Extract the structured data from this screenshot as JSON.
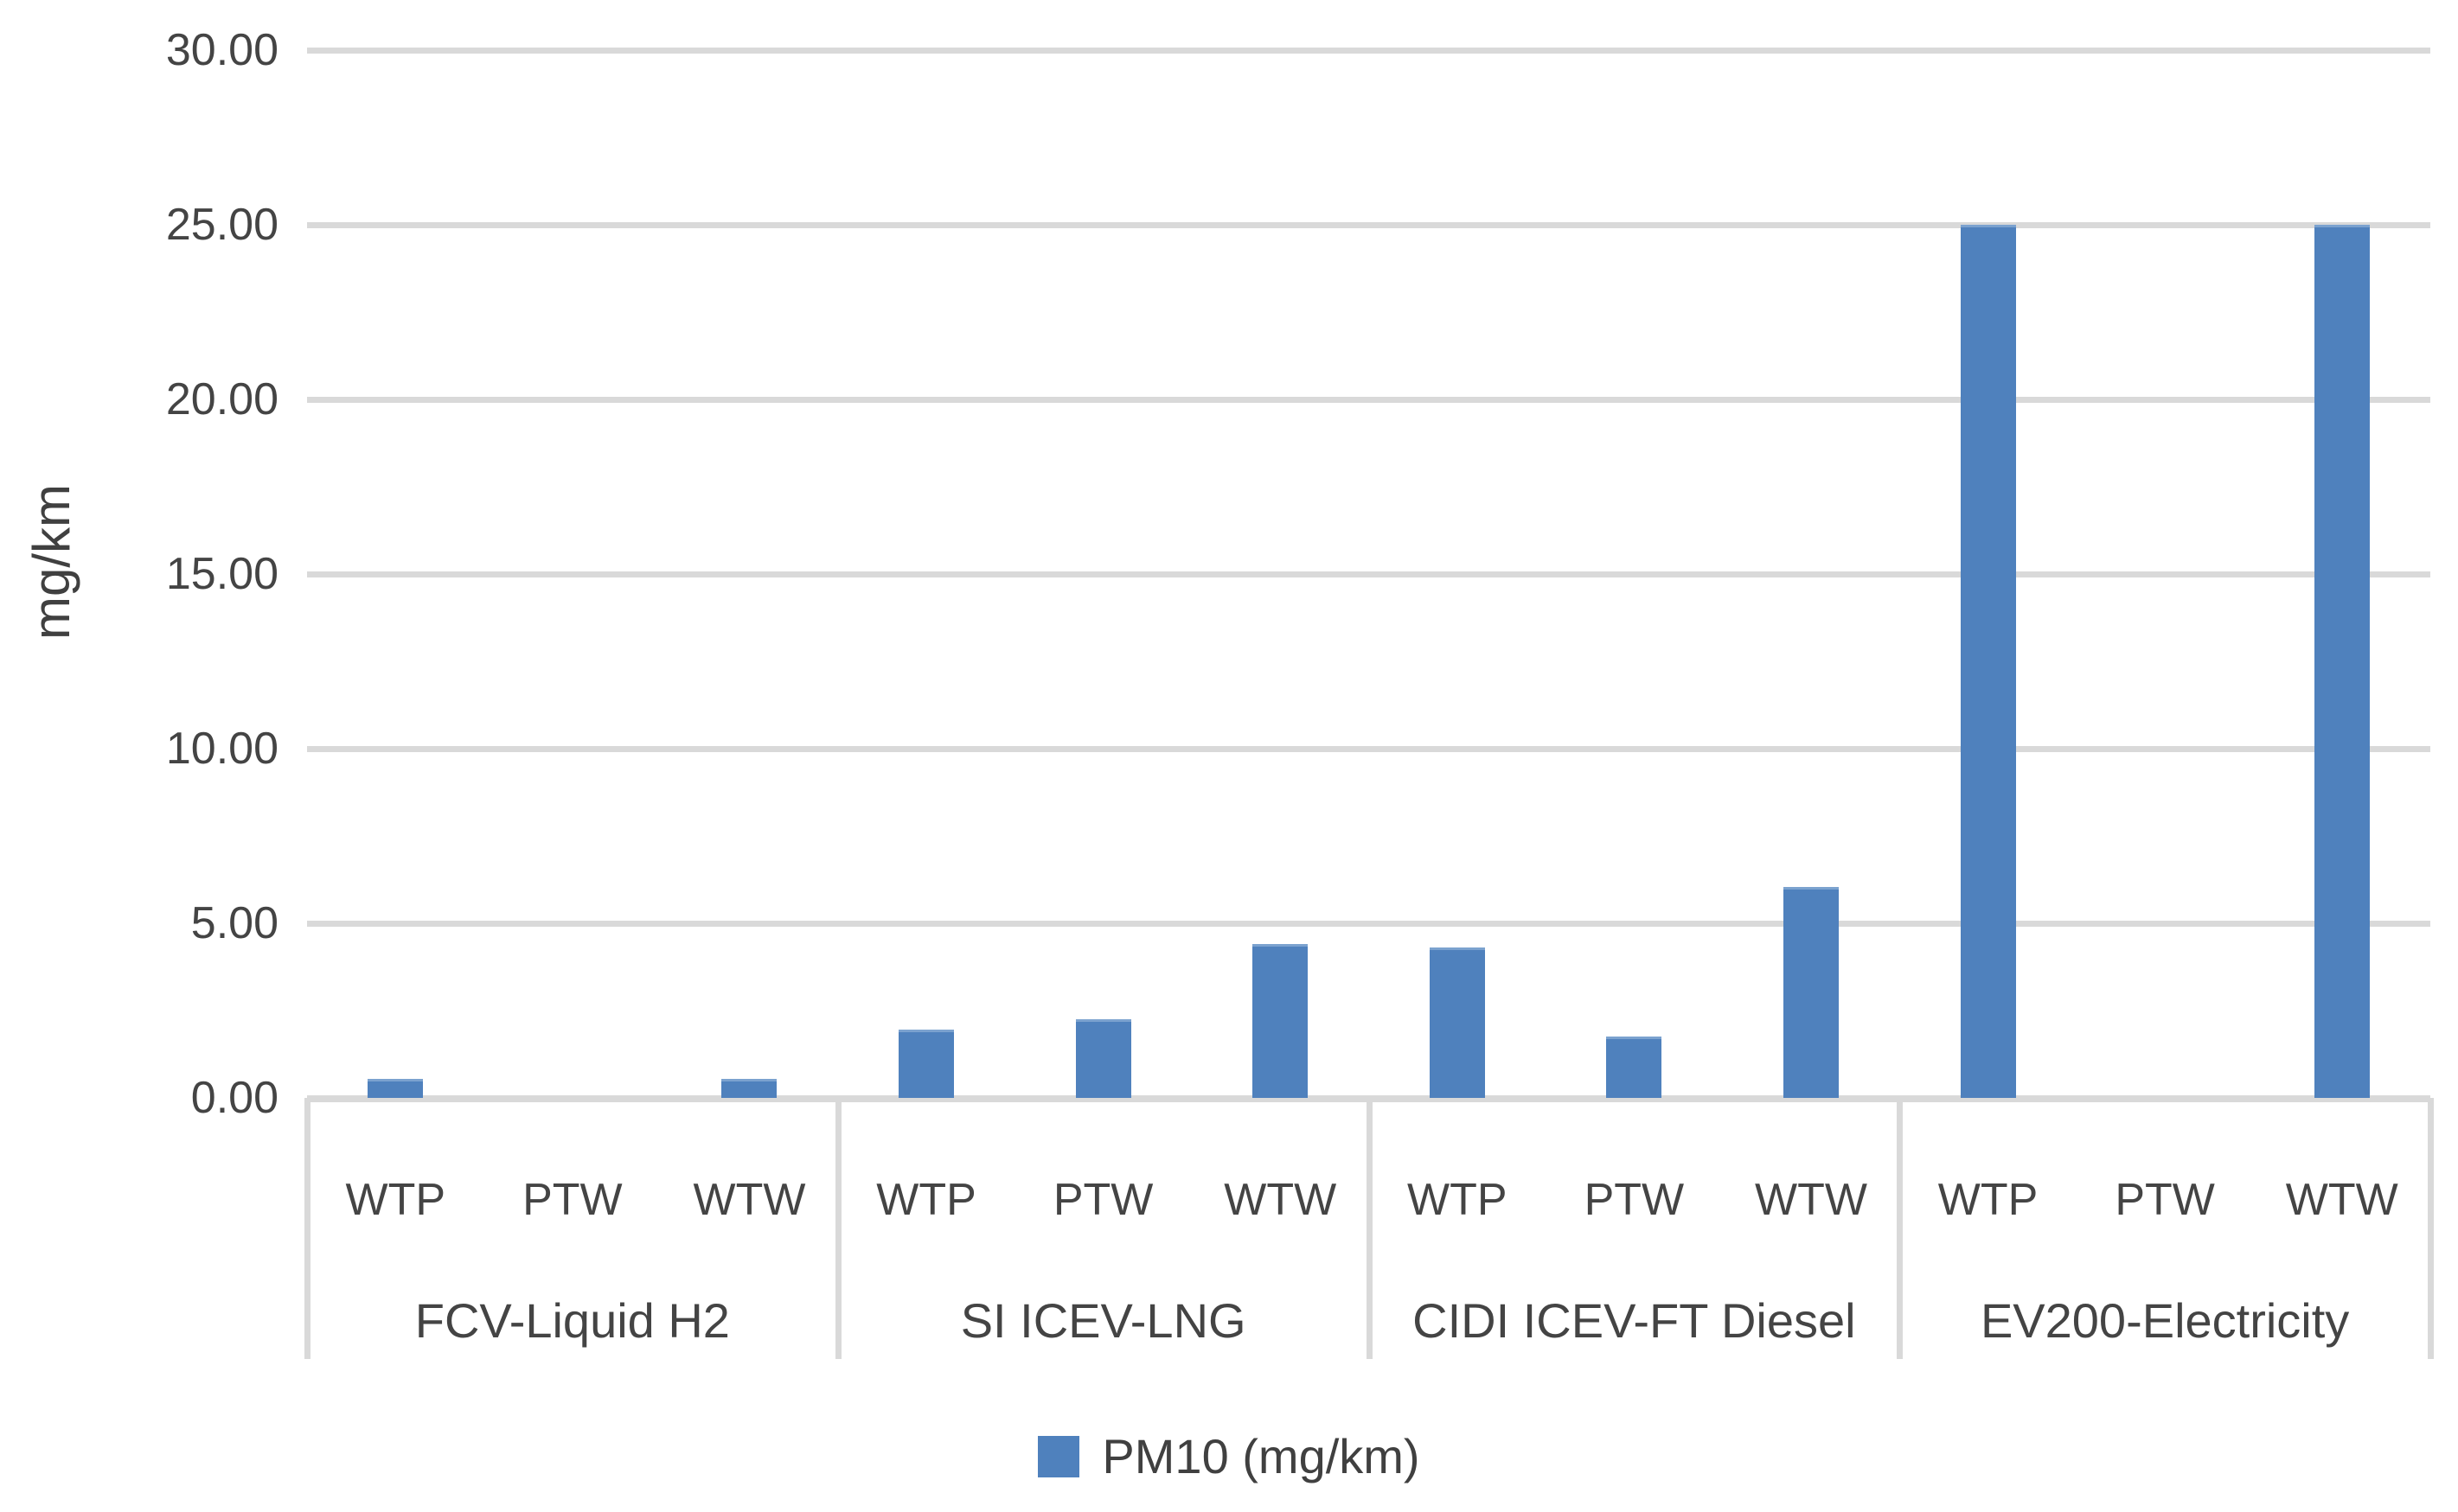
{
  "chart_data": {
    "type": "bar",
    "title": "",
    "ylabel": "mg/km",
    "xlabel": "",
    "ylim": [
      0,
      30
    ],
    "y_tick_step": 5,
    "y_tick_labels": [
      "30.00",
      "25.00",
      "20.00",
      "15.00",
      "10.00",
      "5.00",
      "0.00"
    ],
    "grid": "horizontal",
    "legend_position": "bottom-center",
    "legend_label": "PM10 (mg/km)",
    "sub_categories": [
      "WTP",
      "PTW",
      "WTW"
    ],
    "groups": [
      {
        "label": "FCV-Liquid H2",
        "values": [
          0.55,
          0,
          0.55
        ]
      },
      {
        "label": "SI ICEV-LNG",
        "values": [
          1.95,
          2.25,
          4.4
        ]
      },
      {
        "label": "CIDI ICEV-FT Diesel",
        "values": [
          4.3,
          1.75,
          6.05
        ]
      },
      {
        "label": "EV200-Electricity",
        "values": [
          25,
          0,
          25
        ]
      }
    ],
    "colors": {
      "bar": "#4f81bd",
      "bar_edge": "#7ba2cf",
      "gridline": "#d9d9d9",
      "axis_text": "#444444",
      "background": "#ffffff"
    }
  }
}
